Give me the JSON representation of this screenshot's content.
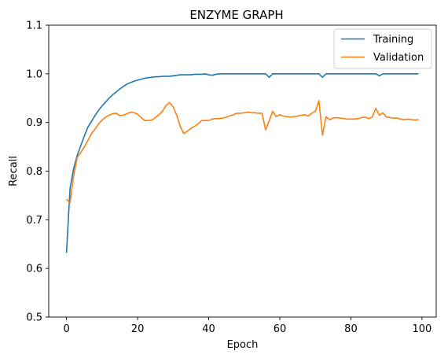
{
  "chart_data": {
    "type": "line",
    "title": "ENZYME GRAPH",
    "xlabel": "Epoch",
    "ylabel": "Recall",
    "xlim": [
      -5,
      104
    ],
    "ylim": [
      0.5,
      1.1
    ],
    "xticks": [
      0,
      20,
      40,
      60,
      80,
      100
    ],
    "yticks": [
      0.5,
      0.6,
      0.7,
      0.8,
      0.9,
      1.0,
      1.1
    ],
    "xtick_labels": [
      "0",
      "20",
      "40",
      "60",
      "80",
      "100"
    ],
    "ytick_labels": [
      "0.5",
      "0.6",
      "0.7",
      "0.8",
      "0.9",
      "1.0",
      "1.1"
    ],
    "grid": false,
    "legend_position": "top-right",
    "series": [
      {
        "name": "Training",
        "color": "#1f77b4",
        "values": [
          0.632,
          0.765,
          0.805,
          0.832,
          0.852,
          0.872,
          0.89,
          0.902,
          0.914,
          0.925,
          0.934,
          0.942,
          0.95,
          0.957,
          0.963,
          0.969,
          0.974,
          0.979,
          0.982,
          0.985,
          0.987,
          0.989,
          0.991,
          0.992,
          0.993,
          0.994,
          0.994,
          0.995,
          0.995,
          0.995,
          0.996,
          0.997,
          0.998,
          0.998,
          0.998,
          0.998,
          0.999,
          0.999,
          0.999,
          1.0,
          0.998,
          0.997,
          0.999,
          1.0,
          1.0,
          1.0,
          1.0,
          1.0,
          1.0,
          1.0,
          1.0,
          1.0,
          1.0,
          1.0,
          1.0,
          1.0,
          1.0,
          0.993,
          1.0,
          1.0,
          1.0,
          1.0,
          1.0,
          1.0,
          1.0,
          1.0,
          1.0,
          1.0,
          1.0,
          1.0,
          1.0,
          1.0,
          0.993,
          1.0,
          1.0,
          1.0,
          1.0,
          1.0,
          1.0,
          1.0,
          1.0,
          1.0,
          1.0,
          1.0,
          1.0,
          1.0,
          1.0,
          1.0,
          0.996,
          1.0,
          1.0,
          1.0,
          1.0,
          1.0,
          1.0,
          1.0,
          1.0,
          1.0,
          1.0,
          1.0
        ]
      },
      {
        "name": "Validation",
        "color": "#ff7f0e",
        "values": [
          0.742,
          0.735,
          0.79,
          0.828,
          0.838,
          0.85,
          0.863,
          0.877,
          0.886,
          0.897,
          0.905,
          0.911,
          0.915,
          0.918,
          0.919,
          0.914,
          0.915,
          0.918,
          0.921,
          0.92,
          0.917,
          0.91,
          0.904,
          0.904,
          0.905,
          0.91,
          0.916,
          0.923,
          0.935,
          0.941,
          0.932,
          0.915,
          0.892,
          0.877,
          0.882,
          0.888,
          0.892,
          0.897,
          0.904,
          0.904,
          0.904,
          0.907,
          0.908,
          0.908,
          0.909,
          0.911,
          0.914,
          0.916,
          0.919,
          0.919,
          0.92,
          0.921,
          0.92,
          0.92,
          0.919,
          0.919,
          0.885,
          0.903,
          0.923,
          0.912,
          0.916,
          0.913,
          0.912,
          0.911,
          0.912,
          0.913,
          0.915,
          0.916,
          0.913,
          0.919,
          0.923,
          0.945,
          0.874,
          0.912,
          0.906,
          0.909,
          0.91,
          0.909,
          0.908,
          0.907,
          0.907,
          0.907,
          0.908,
          0.91,
          0.911,
          0.908,
          0.911,
          0.929,
          0.915,
          0.92,
          0.911,
          0.91,
          0.909,
          0.909,
          0.907,
          0.906,
          0.907,
          0.906,
          0.905,
          0.906
        ]
      }
    ]
  }
}
